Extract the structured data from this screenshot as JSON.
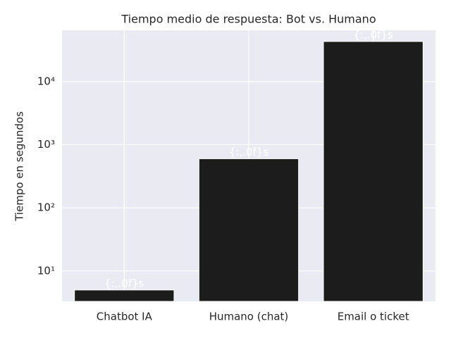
{
  "chart_data": {
    "type": "bar",
    "title": "Tiempo medio de respuesta: Bot vs. Humano",
    "y_label": "Tiempo en segundos",
    "categories": [
      "Chatbot IA",
      "Humano (chat)",
      "Email o ticket"
    ],
    "values": [
      5,
      600,
      43200
    ],
    "annotations": [
      "{:,.0f}s",
      "{:,.0f}s",
      "{:,.0f}s"
    ],
    "color": "#1c1c1c",
    "log_scale": true,
    "grid": true,
    "ylim": [
      3.3,
      65000
    ],
    "yticks": [
      {
        "value": 10,
        "label": "10¹"
      },
      {
        "value": 100,
        "label": "10²"
      },
      {
        "value": 1000,
        "label": "10³"
      },
      {
        "value": 10000,
        "label": "10⁴"
      }
    ]
  }
}
